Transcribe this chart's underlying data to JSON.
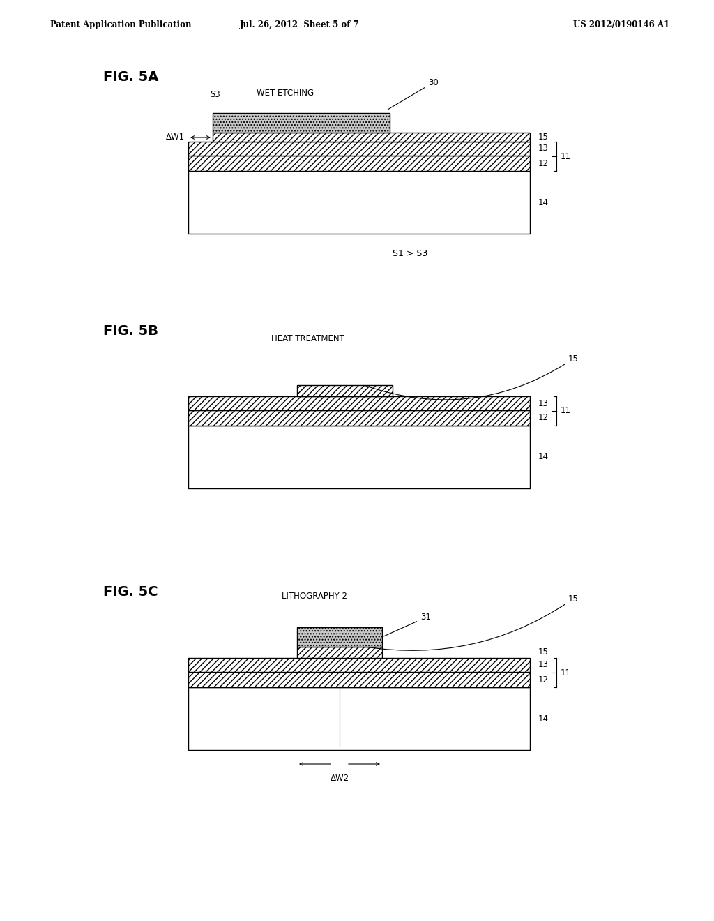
{
  "bg_color": "#ffffff",
  "text_color": "#000000",
  "header_left": "Patent Application Publication",
  "header_center": "Jul. 26, 2012  Sheet 5 of 7",
  "header_right": "US 2012/0190146 A1",
  "fig5a_label": "FIG. 5A",
  "fig5b_label": "FIG. 5B",
  "fig5c_label": "FIG. 5C",
  "s1s3_label": "S1 > S3",
  "wet_etching_label": "WET ETCHING",
  "heat_treatment_label": "HEAT TREATMENT",
  "litho_label": "LITHOGRAPHY 2",
  "s3_label": "S3",
  "dw1_label": "ΔW1",
  "dw2_label": "ΔW2",
  "label_30": "30",
  "label_31": "31",
  "label_11": "11",
  "label_12": "12",
  "label_13": "13",
  "label_14": "14",
  "label_15": "15"
}
